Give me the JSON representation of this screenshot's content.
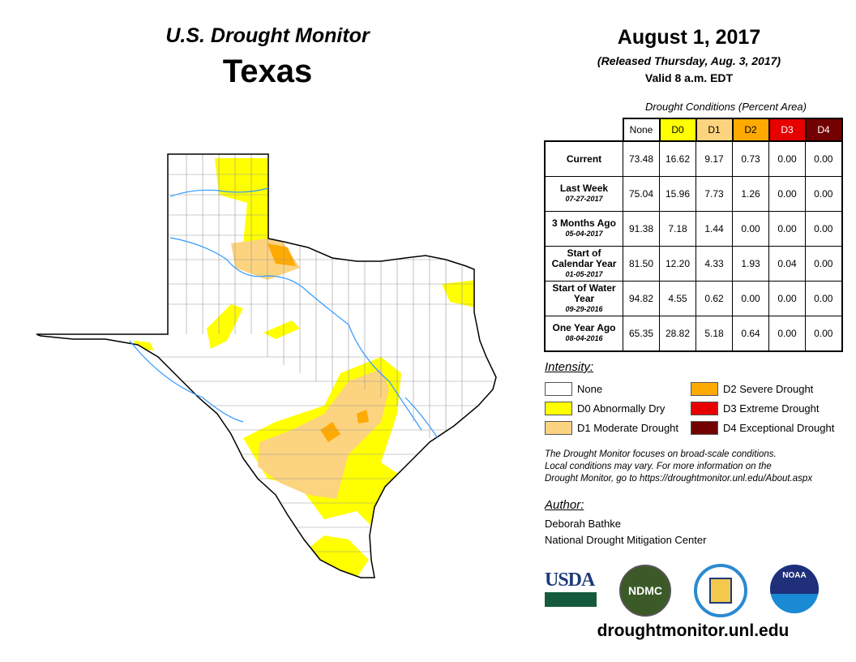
{
  "header": {
    "title": "U.S. Drought Monitor",
    "state": "Texas",
    "date": "August 1, 2017",
    "released": "(Released Thursday, Aug. 3, 2017)",
    "valid": "Valid 8 a.m. EDT"
  },
  "table": {
    "caption": "Drought Conditions (Percent Area)",
    "columns": [
      "None",
      "D0",
      "D1",
      "D2",
      "D3",
      "D4"
    ],
    "column_colors": [
      "#ffffff",
      "#ffff00",
      "#fcd37f",
      "#ffaa00",
      "#e60000",
      "#730000"
    ],
    "rows": [
      {
        "label": "Current",
        "date": "",
        "values": [
          "73.48",
          "16.62",
          "9.17",
          "0.73",
          "0.00",
          "0.00"
        ]
      },
      {
        "label": "Last Week",
        "date": "07-27-2017",
        "values": [
          "75.04",
          "15.96",
          "7.73",
          "1.26",
          "0.00",
          "0.00"
        ]
      },
      {
        "label": "3 Months Ago",
        "date": "05-04-2017",
        "values": [
          "91.38",
          "7.18",
          "1.44",
          "0.00",
          "0.00",
          "0.00"
        ]
      },
      {
        "label": "Start of Calendar Year",
        "date": "01-05-2017",
        "values": [
          "81.50",
          "12.20",
          "4.33",
          "1.93",
          "0.04",
          "0.00"
        ]
      },
      {
        "label": "Start of Water Year",
        "date": "09-29-2016",
        "values": [
          "94.82",
          "4.55",
          "0.62",
          "0.00",
          "0.00",
          "0.00"
        ]
      },
      {
        "label": "One Year Ago",
        "date": "08-04-2016",
        "values": [
          "65.35",
          "28.82",
          "5.18",
          "0.64",
          "0.00",
          "0.00"
        ]
      }
    ]
  },
  "legend": {
    "title": "Intensity:",
    "items": [
      {
        "label": "None",
        "color": "#ffffff"
      },
      {
        "label": "D0 Abnormally Dry",
        "color": "#ffff00"
      },
      {
        "label": "D1 Moderate Drought",
        "color": "#fcd37f"
      },
      {
        "label": "D2 Severe Drought",
        "color": "#ffaa00"
      },
      {
        "label": "D3 Extreme Drought",
        "color": "#e60000"
      },
      {
        "label": "D4 Exceptional Drought",
        "color": "#730000"
      }
    ]
  },
  "note": [
    "The Drought Monitor focuses on broad-scale conditions.",
    "Local conditions may vary. For more information on the",
    "Drought Monitor, go to https://droughtmonitor.unl.edu/About.aspx"
  ],
  "author": {
    "title": "Author:",
    "name": "Deborah Bathke",
    "org": "National Drought Mitigation Center"
  },
  "logos": {
    "usda": "USDA",
    "ndmc": "NDMC",
    "noaa": "NOAA"
  },
  "url": "droughtmonitor.unl.edu"
}
